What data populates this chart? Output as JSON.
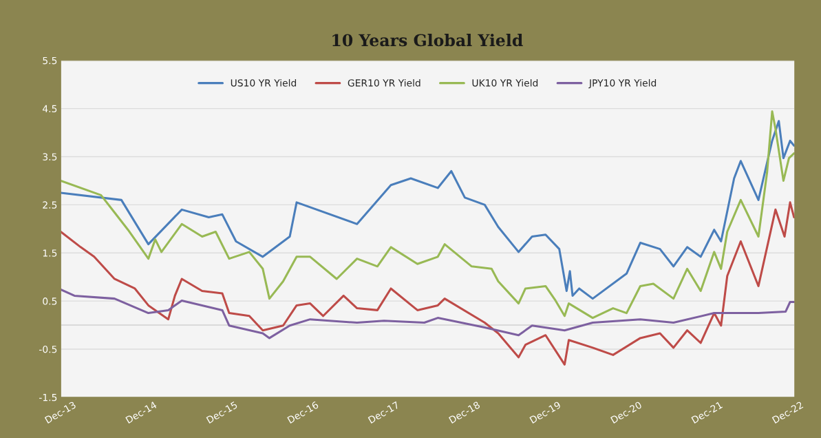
{
  "chart_data": {
    "type": "line",
    "title": "10 Years Global Yield",
    "xlim": [
      "2013-12-01",
      "2022-12-31"
    ],
    "xticks": [
      {
        "value": "2013-12-01",
        "label": "Dec-13"
      },
      {
        "value": "2014-12-01",
        "label": "Dec-14"
      },
      {
        "value": "2015-12-01",
        "label": "Dec-15"
      },
      {
        "value": "2016-12-01",
        "label": "Dec-16"
      },
      {
        "value": "2017-12-01",
        "label": "Dec-17"
      },
      {
        "value": "2018-12-01",
        "label": "Dec-18"
      },
      {
        "value": "2019-12-01",
        "label": "Dec-19"
      },
      {
        "value": "2020-12-01",
        "label": "Dec-20"
      },
      {
        "value": "2021-12-01",
        "label": "Dec-21"
      },
      {
        "value": "2022-12-01",
        "label": "Dec-22"
      }
    ],
    "ylim": [
      -1.5,
      5.5
    ],
    "yticks": [
      -1.5,
      -0.5,
      0.5,
      1.5,
      2.5,
      3.5,
      4.5,
      5.5
    ],
    "grid": "y",
    "legend": "top",
    "marker": "none",
    "line_style": "solid",
    "ref_lines": [
      {
        "axis": "y",
        "value": 0,
        "color": "#d9d9d9"
      }
    ],
    "series": [
      {
        "name": "US10 YR Yield",
        "color": "#4a7ebb",
        "x": [
          "2013-12",
          "2014-09",
          "2015-01",
          "2015-06",
          "2015-10",
          "2015-12",
          "2016-02",
          "2016-06",
          "2016-10",
          "2016-11",
          "2017-08",
          "2018-01",
          "2018-04",
          "2018-08",
          "2018-10",
          "2018-12",
          "2019-03",
          "2019-05",
          "2019-08",
          "2019-10",
          "2019-12",
          "2020-02",
          "2020-03-05",
          "2020-03-20",
          "2020-04",
          "2020-05",
          "2020-07",
          "2020-12",
          "2021-02",
          "2021-05",
          "2021-07",
          "2021-09",
          "2021-11",
          "2022-01",
          "2022-02",
          "2022-04",
          "2022-05",
          "2022-07-20",
          "2022-09-20",
          "2022-10-20",
          "2022-11-10",
          "2022-12-10",
          "2022-12-28"
        ],
        "values": [
          2.75,
          2.6,
          1.68,
          2.4,
          2.24,
          2.3,
          1.74,
          1.42,
          1.84,
          2.55,
          2.1,
          2.91,
          3.05,
          2.85,
          3.2,
          2.65,
          2.5,
          2.04,
          1.52,
          1.84,
          1.88,
          1.58,
          0.71,
          1.12,
          0.61,
          0.76,
          0.55,
          1.07,
          1.71,
          1.58,
          1.22,
          1.62,
          1.42,
          1.98,
          1.74,
          3.05,
          3.41,
          2.6,
          3.83,
          4.24,
          3.47,
          3.83,
          3.73
        ]
      },
      {
        "name": "GER10 YR Yield",
        "color": "#be4b48",
        "x": [
          "2013-12",
          "2014-03",
          "2014-05",
          "2014-08",
          "2014-11",
          "2015-01",
          "2015-04",
          "2015-05",
          "2015-06",
          "2015-09",
          "2015-12",
          "2016-01",
          "2016-04",
          "2016-06",
          "2016-09",
          "2016-11",
          "2017-01",
          "2017-03",
          "2017-06",
          "2017-08",
          "2017-11",
          "2018-01",
          "2018-05",
          "2018-08",
          "2018-09",
          "2019-03",
          "2019-05",
          "2019-08",
          "2019-09",
          "2019-12",
          "2020-02-25",
          "2020-03-15",
          "2020-07",
          "2020-10",
          "2021-02",
          "2021-05",
          "2021-07",
          "2021-09",
          "2021-11",
          "2022-01",
          "2022-02",
          "2022-03",
          "2022-05",
          "2022-07-20",
          "2022-10-05",
          "2022-11-15",
          "2022-12-10",
          "2022-12-28"
        ],
        "values": [
          1.94,
          1.62,
          1.42,
          0.96,
          0.76,
          0.41,
          0.12,
          0.61,
          0.96,
          0.71,
          0.66,
          0.25,
          0.19,
          -0.11,
          -0.01,
          0.41,
          0.45,
          0.19,
          0.61,
          0.35,
          0.31,
          0.76,
          0.31,
          0.41,
          0.55,
          0.05,
          -0.17,
          -0.67,
          -0.41,
          -0.21,
          -0.82,
          -0.31,
          -0.47,
          -0.62,
          -0.27,
          -0.17,
          -0.47,
          -0.11,
          -0.37,
          0.25,
          -0.01,
          1.02,
          1.74,
          0.81,
          2.4,
          1.84,
          2.55,
          2.24
        ]
      },
      {
        "name": "UK10 YR Yield",
        "color": "#98b954",
        "x": [
          "2013-12",
          "2014-06",
          "2014-08",
          "2014-10",
          "2015-01",
          "2015-02",
          "2015-03",
          "2015-06",
          "2015-09",
          "2015-11",
          "2016-01",
          "2016-04",
          "2016-06",
          "2016-07",
          "2016-09",
          "2016-11",
          "2017-01",
          "2017-05",
          "2017-08",
          "2017-11",
          "2018-01",
          "2018-05",
          "2018-08",
          "2018-09",
          "2019-01",
          "2019-04",
          "2019-05",
          "2019-08",
          "2019-09",
          "2019-12",
          "2020-01-15",
          "2020-02-25",
          "2020-03-15",
          "2020-07",
          "2020-10",
          "2020-12",
          "2021-02",
          "2021-04",
          "2021-07",
          "2021-09",
          "2021-11",
          "2022-01",
          "2022-02",
          "2022-03",
          "2022-05",
          "2022-07-20",
          "2022-08-28",
          "2022-09-20",
          "2022-10-05",
          "2022-11-10",
          "2022-12-05",
          "2022-12-28"
        ],
        "values": [
          3.0,
          2.7,
          2.34,
          1.98,
          1.38,
          1.78,
          1.52,
          2.1,
          1.84,
          1.94,
          1.38,
          1.52,
          1.17,
          0.55,
          0.91,
          1.42,
          1.42,
          0.96,
          1.38,
          1.22,
          1.62,
          1.27,
          1.42,
          1.68,
          1.22,
          1.17,
          0.91,
          0.45,
          0.76,
          0.81,
          0.51,
          0.19,
          0.45,
          0.15,
          0.35,
          0.25,
          0.81,
          0.86,
          0.55,
          1.17,
          0.71,
          1.52,
          1.17,
          1.94,
          2.6,
          1.84,
          3.17,
          4.44,
          4.08,
          3.0,
          3.47,
          3.57
        ]
      },
      {
        "name": "JPY10 YR Yield",
        "color": "#7d60a0",
        "x": [
          "2013-12",
          "2014-02",
          "2014-08",
          "2015-01",
          "2015-04",
          "2015-06",
          "2015-12",
          "2016-01",
          "2016-06",
          "2016-07",
          "2016-10",
          "2017-01",
          "2017-08",
          "2017-12",
          "2018-06",
          "2018-08",
          "2019-03",
          "2019-08",
          "2019-10",
          "2020-02-25",
          "2020-07",
          "2021-02",
          "2021-07",
          "2022-01",
          "2022-07-20",
          "2022-11-20",
          "2022-12-10",
          "2022-12-28"
        ],
        "values": [
          0.74,
          0.61,
          0.55,
          0.25,
          0.31,
          0.51,
          0.31,
          -0.01,
          -0.17,
          -0.27,
          -0.01,
          0.12,
          0.05,
          0.09,
          0.05,
          0.15,
          -0.05,
          -0.21,
          -0.01,
          -0.11,
          0.05,
          0.12,
          0.05,
          0.25,
          0.25,
          0.28,
          0.48,
          0.48
        ]
      }
    ]
  }
}
